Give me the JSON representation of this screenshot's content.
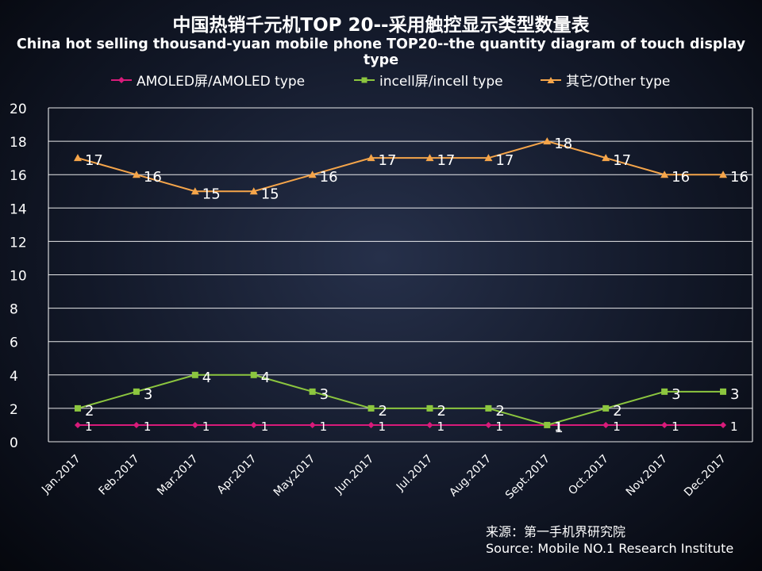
{
  "title": "中国热销千元机TOP 20--采用触控显示类型数量表",
  "subtitle": "China hot selling thousand-yuan mobile phone TOP20--the quantity diagram of touch display type",
  "source_cn": "来源：第一手机界研究院",
  "source_en": "Source: Mobile NO.1 Research Institute",
  "chart_data": {
    "type": "line",
    "categories": [
      "Jan.2017",
      "Feb.2017",
      "Mar.2017",
      "Apr.2017",
      "May.2017",
      "Jun.2017",
      "Jul.2017",
      "Aug.2017",
      "Sept.2017",
      "Oct.2017",
      "Nov.2017",
      "Dec.2017"
    ],
    "ylim": [
      0,
      20
    ],
    "yticks": [
      "0",
      "2",
      "4",
      "6",
      "8",
      "10",
      "12",
      "14",
      "16",
      "18",
      "20"
    ],
    "grid": true,
    "legend_position": "top",
    "series": [
      {
        "name": "AMOLED屏/AMOLED type",
        "color": "#d81b7a",
        "marker": "diamond",
        "values": [
          1,
          1,
          1,
          1,
          1,
          1,
          1,
          1,
          1,
          1,
          1,
          1
        ]
      },
      {
        "name": "incell屏/incell type",
        "color": "#8cc63f",
        "marker": "square",
        "values": [
          2,
          3,
          4,
          4,
          3,
          2,
          2,
          2,
          1,
          2,
          3,
          3
        ]
      },
      {
        "name": "其它/Other type",
        "color": "#f5a54a",
        "marker": "triangle",
        "values": [
          17,
          16,
          15,
          15,
          16,
          17,
          17,
          17,
          18,
          17,
          16,
          16
        ]
      }
    ]
  }
}
